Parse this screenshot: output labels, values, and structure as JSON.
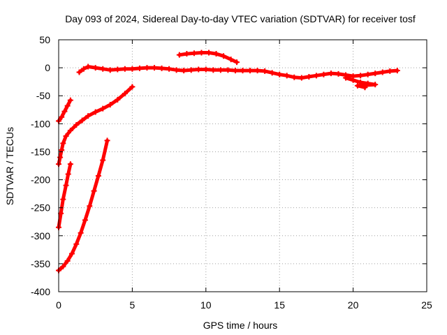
{
  "chart_data": {
    "type": "scatter",
    "title": "Day 093 of 2024, Sidereal Day-to-day VTEC variation (SDTVAR) for receiver tosf",
    "xlabel": "GPS time / hours",
    "ylabel": "SDTVAR / TECUs",
    "xlim": [
      0,
      25
    ],
    "ylim": [
      -400,
      50
    ],
    "xticks": [
      "0",
      "5",
      "10",
      "15",
      "20",
      "25"
    ],
    "yticks": [
      "50",
      "0",
      "-50",
      "-100",
      "-150",
      "-200",
      "-250",
      "-300",
      "-350",
      "-400"
    ],
    "grid": true,
    "legend": "none",
    "series_color": "#ff0000",
    "series": [
      {
        "values": [
          [
            1.4,
            -8
          ],
          [
            1.7,
            -2
          ],
          [
            2.0,
            2
          ],
          [
            2.5,
            0
          ],
          [
            3.0,
            -2
          ],
          [
            3.5,
            -4
          ],
          [
            4.0,
            -3
          ],
          [
            4.5,
            -2
          ],
          [
            5.0,
            -2
          ],
          [
            5.5,
            -1
          ],
          [
            6.0,
            0
          ],
          [
            6.5,
            0
          ],
          [
            7.0,
            -1
          ],
          [
            7.5,
            -2
          ],
          [
            8.0,
            -4
          ],
          [
            8.5,
            -5
          ],
          [
            9.0,
            -4
          ],
          [
            9.5,
            -3
          ],
          [
            10.0,
            -3
          ],
          [
            10.5,
            -4
          ],
          [
            11.0,
            -4
          ],
          [
            11.5,
            -4
          ],
          [
            12.0,
            -5
          ],
          [
            12.5,
            -5
          ],
          [
            13.0,
            -5
          ],
          [
            13.5,
            -5
          ],
          [
            14.0,
            -6
          ],
          [
            14.5,
            -9
          ],
          [
            15.0,
            -12
          ],
          [
            15.5,
            -14
          ],
          [
            16.0,
            -17
          ],
          [
            16.5,
            -18
          ],
          [
            17.0,
            -16
          ],
          [
            17.5,
            -14
          ],
          [
            18.0,
            -12
          ],
          [
            18.5,
            -10
          ],
          [
            19.0,
            -11
          ],
          [
            19.5,
            -13
          ],
          [
            20.0,
            -15
          ],
          [
            20.5,
            -14
          ],
          [
            21.0,
            -12
          ],
          [
            21.5,
            -10
          ],
          [
            22.0,
            -8
          ],
          [
            22.5,
            -6
          ],
          [
            23.0,
            -5
          ]
        ]
      },
      {
        "values": [
          [
            19.5,
            -18
          ],
          [
            20.0,
            -22
          ],
          [
            20.5,
            -26
          ],
          [
            21.0,
            -28
          ],
          [
            21.5,
            -30
          ],
          [
            20.3,
            -32
          ],
          [
            20.8,
            -35
          ]
        ]
      },
      {
        "values": [
          [
            8.2,
            23
          ],
          [
            8.7,
            25
          ],
          [
            9.2,
            26
          ],
          [
            9.7,
            27
          ],
          [
            10.2,
            27
          ],
          [
            10.7,
            25
          ],
          [
            11.2,
            21
          ],
          [
            11.7,
            15
          ],
          [
            12.1,
            10
          ]
        ]
      },
      {
        "values": [
          [
            0.0,
            -95
          ],
          [
            0.2,
            -88
          ],
          [
            0.4,
            -78
          ],
          [
            0.6,
            -68
          ],
          [
            0.8,
            -58
          ]
        ]
      },
      {
        "values": [
          [
            0.0,
            -172
          ],
          [
            0.1,
            -160
          ],
          [
            0.2,
            -147
          ],
          [
            0.3,
            -135
          ],
          [
            0.5,
            -122
          ],
          [
            0.8,
            -112
          ],
          [
            1.2,
            -102
          ],
          [
            1.6,
            -94
          ],
          [
            2.0,
            -86
          ],
          [
            2.5,
            -79
          ],
          [
            3.0,
            -73
          ],
          [
            3.5,
            -66
          ],
          [
            4.0,
            -57
          ],
          [
            4.5,
            -46
          ],
          [
            5.0,
            -34
          ]
        ]
      },
      {
        "values": [
          [
            0.0,
            -285
          ],
          [
            0.15,
            -260
          ],
          [
            0.3,
            -235
          ],
          [
            0.5,
            -210
          ],
          [
            0.65,
            -190
          ],
          [
            0.8,
            -172
          ]
        ]
      },
      {
        "values": [
          [
            0.0,
            -362
          ],
          [
            0.3,
            -355
          ],
          [
            0.6,
            -345
          ],
          [
            0.9,
            -332
          ],
          [
            1.2,
            -315
          ],
          [
            1.5,
            -295
          ],
          [
            1.8,
            -272
          ],
          [
            2.1,
            -247
          ],
          [
            2.4,
            -220
          ],
          [
            2.7,
            -193
          ],
          [
            3.0,
            -165
          ],
          [
            3.3,
            -130
          ]
        ]
      }
    ]
  }
}
